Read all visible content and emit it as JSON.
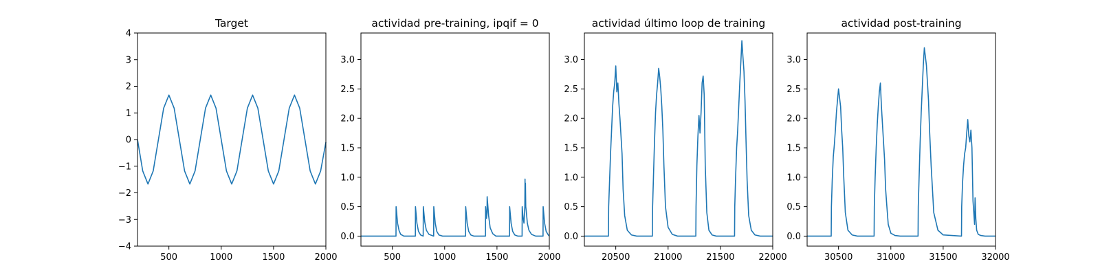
{
  "chart_data": [
    {
      "type": "line",
      "title": "Target",
      "xlim": [
        200,
        2000
      ],
      "ylim": [
        -4,
        4
      ],
      "xticks": [
        500,
        1000,
        1500,
        2000
      ],
      "yticks": [
        -4,
        -3,
        -2,
        -1,
        0,
        1,
        2,
        3,
        4
      ],
      "color": "#1f77b4",
      "series": [
        {
          "x": [
            200,
            250,
            300,
            350,
            400,
            450,
            500,
            550,
            600,
            650,
            700,
            750,
            800,
            850,
            900,
            950,
            1000,
            1050,
            1100,
            1150,
            1200,
            1250,
            1300,
            1350,
            1400,
            1450,
            1500,
            1550,
            1600,
            1650,
            1700,
            1750,
            1800,
            1850,
            1900,
            1950,
            2000
          ],
          "y": [
            0.0,
            -1.18,
            -1.67,
            -1.18,
            0.0,
            1.18,
            1.67,
            1.18,
            0.0,
            -1.18,
            -1.67,
            -1.18,
            0.0,
            1.18,
            1.67,
            1.18,
            0.0,
            -1.18,
            -1.67,
            -1.18,
            0.0,
            1.18,
            1.67,
            1.18,
            0.0,
            -1.18,
            -1.67,
            -1.18,
            0.0,
            1.18,
            1.67,
            1.18,
            0.0,
            -1.18,
            -1.67,
            -1.18,
            -0.1
          ]
        }
      ]
    },
    {
      "type": "line",
      "title": "actividad pre-training, ipqif = 0",
      "xlim": [
        200,
        2000
      ],
      "ylim": [
        -0.17,
        3.45
      ],
      "xticks": [
        500,
        1000,
        1500,
        2000
      ],
      "yticks": [
        0.0,
        0.5,
        1.0,
        1.5,
        2.0,
        2.5,
        3.0
      ],
      "ytick_labels": [
        "0.0",
        "0.5",
        "1.0",
        "1.5",
        "2.0",
        "2.5",
        "3.0"
      ],
      "color": "#1f77b4",
      "series": [
        {
          "x": [
            200,
            535,
            536,
            550,
            565,
            580,
            610,
            720,
            721,
            735,
            750,
            770,
            795,
            796,
            810,
            825,
            850,
            895,
            896,
            910,
            925,
            945,
            980,
            1200,
            1201,
            1215,
            1230,
            1250,
            1280,
            1390,
            1391,
            1400,
            1405,
            1406,
            1420,
            1435,
            1460,
            1490,
            1620,
            1621,
            1635,
            1650,
            1670,
            1700,
            1740,
            1741,
            1750,
            1758,
            1766,
            1768,
            1770,
            1772,
            1775,
            1780,
            1790,
            1805,
            1830,
            1870,
            1940,
            1941,
            1955,
            1970,
            1990,
            2000
          ],
          "y": [
            0.0,
            0.0,
            0.5,
            0.22,
            0.09,
            0.03,
            0.0,
            0.0,
            0.5,
            0.22,
            0.08,
            0.02,
            0.0,
            0.5,
            0.24,
            0.1,
            0.03,
            0.0,
            0.5,
            0.22,
            0.08,
            0.02,
            0.0,
            0.0,
            0.5,
            0.22,
            0.08,
            0.02,
            0.0,
            0.0,
            0.5,
            0.3,
            0.4,
            0.67,
            0.35,
            0.14,
            0.04,
            0.0,
            0.0,
            0.5,
            0.22,
            0.08,
            0.02,
            0.0,
            0.0,
            0.5,
            0.3,
            0.22,
            0.5,
            0.97,
            0.7,
            0.9,
            0.5,
            0.42,
            0.22,
            0.1,
            0.03,
            0.0,
            0.0,
            0.5,
            0.22,
            0.08,
            0.02,
            0.0
          ]
        }
      ]
    },
    {
      "type": "line",
      "title": "actividad último loop de training",
      "xlim": [
        20200,
        22000
      ],
      "ylim": [
        -0.17,
        3.45
      ],
      "xticks": [
        20500,
        21000,
        21500,
        22000
      ],
      "yticks": [
        0.0,
        0.5,
        1.0,
        1.5,
        2.0,
        2.5,
        3.0
      ],
      "ytick_labels": [
        "0.0",
        "0.5",
        "1.0",
        "1.5",
        "2.0",
        "2.5",
        "3.0"
      ],
      "color": "#1f77b4",
      "series": [
        {
          "x": [
            20200,
            20430,
            20432,
            20440,
            20450,
            20460,
            20470,
            20480,
            20490,
            20500,
            20510,
            20520,
            20530,
            20540,
            20550,
            20560,
            20570,
            20585,
            20610,
            20650,
            20700,
            20850,
            20852,
            20860,
            20870,
            20880,
            20890,
            20900,
            20910,
            20920,
            20930,
            20940,
            20950,
            20960,
            20975,
            21000,
            21040,
            21090,
            21265,
            21267,
            21275,
            21285,
            21295,
            21305,
            21315,
            21325,
            21335,
            21345,
            21355,
            21370,
            21390,
            21420,
            21460,
            21635,
            21637,
            21645,
            21655,
            21665,
            21675,
            21685,
            21695,
            21705,
            21715,
            21725,
            21735,
            21745,
            21755,
            21770,
            21795,
            21830,
            21880,
            22000
          ],
          "y": [
            0.0,
            0.0,
            0.5,
            0.9,
            1.4,
            1.8,
            2.2,
            2.45,
            2.6,
            2.89,
            2.45,
            2.6,
            2.25,
            2.0,
            1.7,
            1.4,
            0.8,
            0.35,
            0.1,
            0.02,
            0.0,
            0.0,
            0.5,
            1.0,
            1.6,
            2.1,
            2.4,
            2.6,
            2.85,
            2.7,
            2.5,
            2.2,
            1.8,
            1.2,
            0.5,
            0.15,
            0.03,
            0.0,
            0.0,
            0.5,
            1.2,
            1.7,
            2.05,
            1.75,
            2.1,
            2.6,
            2.72,
            2.4,
            1.2,
            0.4,
            0.1,
            0.02,
            0.0,
            0.0,
            0.5,
            1.0,
            1.5,
            1.8,
            2.2,
            2.6,
            2.95,
            3.32,
            3.05,
            2.8,
            2.3,
            1.6,
            0.95,
            0.35,
            0.1,
            0.02,
            0.0,
            0.0
          ]
        }
      ]
    },
    {
      "type": "line",
      "title": "actividad post-training",
      "xlim": [
        30200,
        32000
      ],
      "ylim": [
        -0.17,
        3.45
      ],
      "xticks": [
        30500,
        31000,
        31500,
        32000
      ],
      "yticks": [
        0.0,
        0.5,
        1.0,
        1.5,
        2.0,
        2.5,
        3.0
      ],
      "ytick_labels": [
        "0.0",
        "0.5",
        "1.0",
        "1.5",
        "2.0",
        "2.5",
        "3.0"
      ],
      "color": "#1f77b4",
      "series": [
        {
          "x": [
            30200,
            30430,
            30432,
            30440,
            30450,
            30460,
            30470,
            30480,
            30490,
            30500,
            30510,
            30520,
            30530,
            30540,
            30550,
            30565,
            30590,
            30630,
            30680,
            30840,
            30842,
            30850,
            30860,
            30870,
            30880,
            30890,
            30900,
            30910,
            30920,
            30930,
            30940,
            30950,
            30960,
            30975,
            31000,
            31040,
            31090,
            31260,
            31262,
            31270,
            31280,
            31290,
            31300,
            31310,
            31320,
            31330,
            31340,
            31350,
            31360,
            31370,
            31385,
            31410,
            31450,
            31500,
            31675,
            31677,
            31685,
            31695,
            31705,
            31715,
            31725,
            31735,
            31745,
            31755,
            31765,
            31775,
            31785,
            31800,
            31805,
            31812,
            31820,
            31835,
            31860,
            31900,
            31950,
            32000
          ],
          "y": [
            0.0,
            0.0,
            0.5,
            0.95,
            1.35,
            1.55,
            1.8,
            2.1,
            2.3,
            2.5,
            2.35,
            2.2,
            1.8,
            1.5,
            1.0,
            0.4,
            0.1,
            0.02,
            0.0,
            0.0,
            0.5,
            1.0,
            1.5,
            1.9,
            2.2,
            2.45,
            2.6,
            2.2,
            1.9,
            1.6,
            1.3,
            0.8,
            0.55,
            0.2,
            0.05,
            0.01,
            0.0,
            0.0,
            0.5,
            1.0,
            1.6,
            2.1,
            2.5,
            2.9,
            3.2,
            3.05,
            2.9,
            2.6,
            2.3,
            1.8,
            1.2,
            0.4,
            0.1,
            0.02,
            0.0,
            0.5,
            0.9,
            1.2,
            1.4,
            1.5,
            1.75,
            1.98,
            1.7,
            1.6,
            1.8,
            1.5,
            0.6,
            0.2,
            0.65,
            0.3,
            0.1,
            0.03,
            0.01,
            0.0,
            0.0,
            0.0
          ]
        }
      ]
    }
  ]
}
